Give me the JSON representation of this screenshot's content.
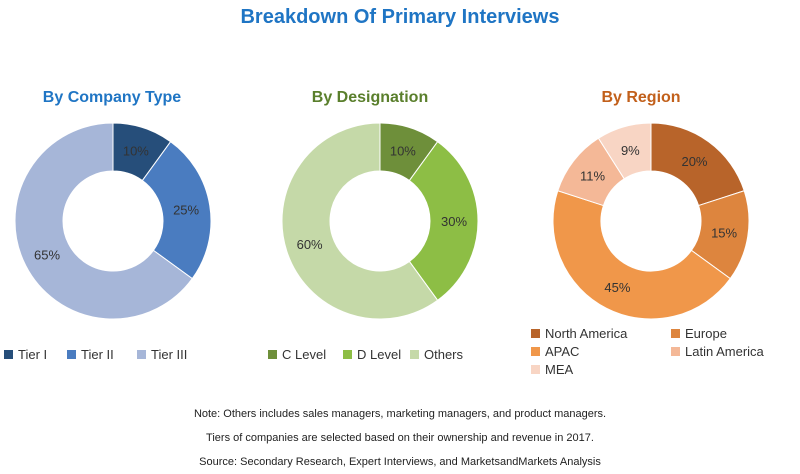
{
  "title": "Breakdown Of Primary Interviews",
  "chart_data": [
    {
      "type": "pie",
      "title": "By Company Type",
      "categories": [
        "Tier I",
        "Tier II",
        "Tier III"
      ],
      "values": [
        10,
        25,
        65
      ],
      "labels": [
        "10%",
        "25%",
        "65%"
      ],
      "colors": [
        "#264e7a",
        "#4a7cc0",
        "#a6b6d8"
      ],
      "legend": "bottom"
    },
    {
      "type": "pie",
      "title": "By Designation",
      "categories": [
        "C Level",
        "D Level",
        "Others"
      ],
      "values": [
        10,
        30,
        60
      ],
      "labels": [
        "10%",
        "30%",
        "60%"
      ],
      "colors": [
        "#6e8f3a",
        "#8dbe45",
        "#c5d9a8"
      ],
      "legend": "bottom"
    },
    {
      "type": "pie",
      "title": "By Region",
      "categories": [
        "North America",
        "Europe",
        "APAC",
        "Latin America",
        "MEA"
      ],
      "values": [
        20,
        15,
        45,
        11,
        9
      ],
      "labels": [
        "20%",
        "15%",
        "45%",
        "11%",
        "9%"
      ],
      "colors": [
        "#b8642a",
        "#dd853e",
        "#f0974a",
        "#f4b897",
        "#f8d5c4"
      ],
      "legend": "bottom"
    }
  ],
  "notes": [
    "Note: Others includes sales managers, marketing managers, and product managers.",
    "Tiers of companies are selected based on their ownership and revenue in 2017.",
    "Source: Secondary Research, Expert Interviews, and MarketsandMarkets Analysis"
  ]
}
